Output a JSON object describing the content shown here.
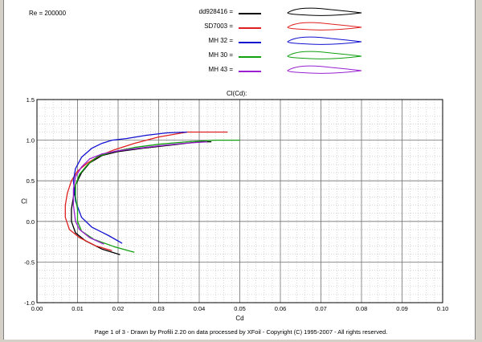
{
  "header": {
    "re_label": "Re = 200000"
  },
  "legend": [
    {
      "name": "dd928416 =",
      "color": "#000000"
    },
    {
      "name": "SD7003 =",
      "color": "#e02020"
    },
    {
      "name": "MH 32 =",
      "color": "#1010d0"
    },
    {
      "name": "MH 30 =",
      "color": "#10a010"
    },
    {
      "name": "MH 43 =",
      "color": "#9a20d0"
    }
  ],
  "footer": {
    "text": "Page 1 of 3  -  Drawn by Profili 2.20 on data processed by  XFoil - Copyright (C) 1995-2007 - All rights reserved."
  },
  "chart_data": {
    "type": "line",
    "title": "Cl(Cd):",
    "xlabel": "Cd",
    "ylabel": "Cl",
    "xlim": [
      0.0,
      0.1
    ],
    "ylim": [
      -1.0,
      1.5
    ],
    "x_ticks": [
      "0.00",
      "0.01",
      "0.02",
      "0.03",
      "0.04",
      "0.05",
      "0.06",
      "0.07",
      "0.08",
      "0.09",
      "0.10"
    ],
    "y_ticks": [
      "1.5",
      "1.0",
      "0.5",
      "0.0",
      "-0.5",
      "-1.0"
    ],
    "grid": true,
    "series": [
      {
        "name": "dd928416",
        "color": "#000000",
        "points": [
          [
            0.0205,
            -0.41
          ],
          [
            0.016,
            -0.34
          ],
          [
            0.012,
            -0.24
          ],
          [
            0.0095,
            -0.14
          ],
          [
            0.0085,
            0.0
          ],
          [
            0.0085,
            0.15
          ],
          [
            0.009,
            0.3
          ],
          [
            0.0095,
            0.45
          ],
          [
            0.011,
            0.6
          ],
          [
            0.013,
            0.72
          ],
          [
            0.016,
            0.81
          ],
          [
            0.02,
            0.86
          ],
          [
            0.026,
            0.9
          ],
          [
            0.033,
            0.94
          ],
          [
            0.04,
            0.98
          ],
          [
            0.043,
            0.98
          ]
        ]
      },
      {
        "name": "SD7003",
        "color": "#e02020",
        "points": [
          [
            0.0185,
            -0.36
          ],
          [
            0.0145,
            -0.3
          ],
          [
            0.0105,
            -0.2
          ],
          [
            0.008,
            -0.1
          ],
          [
            0.007,
            0.05
          ],
          [
            0.007,
            0.2
          ],
          [
            0.0075,
            0.35
          ],
          [
            0.0085,
            0.5
          ],
          [
            0.01,
            0.62
          ],
          [
            0.0125,
            0.72
          ],
          [
            0.0155,
            0.81
          ],
          [
            0.019,
            0.88
          ],
          [
            0.024,
            0.96
          ],
          [
            0.03,
            1.04
          ],
          [
            0.037,
            1.1
          ],
          [
            0.047,
            1.1
          ]
        ]
      },
      {
        "name": "MH 32",
        "color": "#1010d0",
        "points": [
          [
            0.021,
            -0.27
          ],
          [
            0.0175,
            -0.17
          ],
          [
            0.0135,
            -0.07
          ],
          [
            0.011,
            0.05
          ],
          [
            0.0095,
            0.25
          ],
          [
            0.009,
            0.5
          ],
          [
            0.0095,
            0.65
          ],
          [
            0.011,
            0.79
          ],
          [
            0.0135,
            0.9
          ],
          [
            0.016,
            0.96
          ],
          [
            0.0185,
            1.0
          ],
          [
            0.022,
            1.02
          ],
          [
            0.027,
            1.06
          ],
          [
            0.032,
            1.09
          ],
          [
            0.037,
            1.1
          ]
        ]
      },
      {
        "name": "MH 30",
        "color": "#10a010",
        "points": [
          [
            0.024,
            -0.38
          ],
          [
            0.019,
            -0.31
          ],
          [
            0.014,
            -0.22
          ],
          [
            0.011,
            -0.12
          ],
          [
            0.01,
            0.0
          ],
          [
            0.01,
            0.15
          ],
          [
            0.0095,
            0.3
          ],
          [
            0.0095,
            0.45
          ],
          [
            0.0105,
            0.58
          ],
          [
            0.0125,
            0.7
          ],
          [
            0.015,
            0.8
          ],
          [
            0.019,
            0.86
          ],
          [
            0.024,
            0.91
          ],
          [
            0.03,
            0.95
          ],
          [
            0.037,
            0.98
          ],
          [
            0.044,
            1.0
          ],
          [
            0.05,
            1.0
          ]
        ]
      },
      {
        "name": "MH 43",
        "color": "#9a20d0",
        "points": [
          [
            0.0165,
            -0.28
          ],
          [
            0.013,
            -0.2
          ],
          [
            0.0105,
            -0.1
          ],
          [
            0.0095,
            0.0
          ],
          [
            0.009,
            0.2
          ],
          [
            0.009,
            0.4
          ],
          [
            0.0095,
            0.55
          ],
          [
            0.011,
            0.67
          ],
          [
            0.013,
            0.77
          ],
          [
            0.016,
            0.83
          ],
          [
            0.02,
            0.87
          ],
          [
            0.025,
            0.9
          ],
          [
            0.03,
            0.93
          ],
          [
            0.036,
            0.96
          ],
          [
            0.042,
            0.98
          ]
        ]
      }
    ]
  }
}
